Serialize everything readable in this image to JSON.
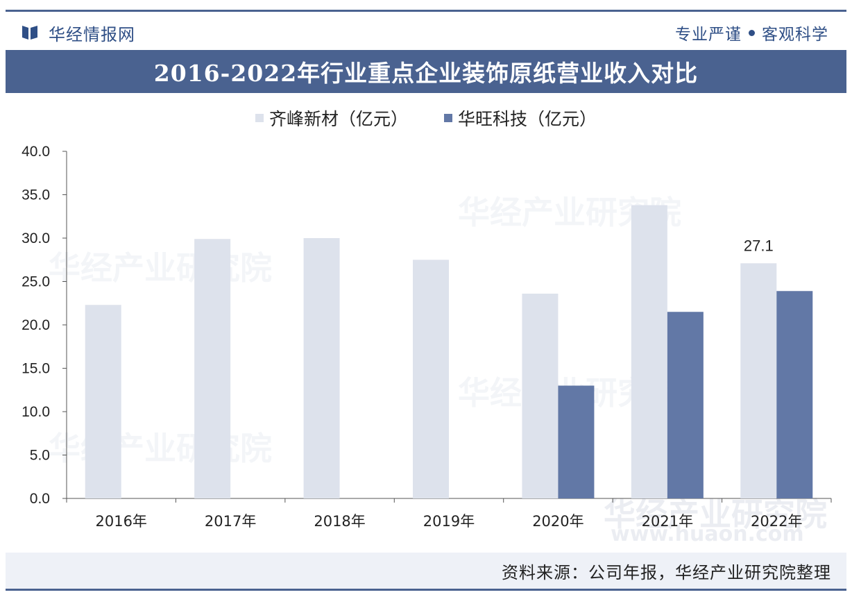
{
  "header": {
    "brand": "华经情报网",
    "slogan_left": "专业严谨",
    "slogan_right": "客观科学"
  },
  "title": "2016-2022年行业重点企业装饰原纸营业收入对比",
  "legend": [
    {
      "label": "齐峰新材（亿元）",
      "color": "#dde2ec"
    },
    {
      "label": "华旺科技（亿元）",
      "color": "#6278a6"
    }
  ],
  "footer": {
    "source": "资料来源：公司年报，华经产业研究院整理"
  },
  "watermarks": [
    "华经产业研究院",
    "www.huaon.com"
  ],
  "colors": {
    "accent": "#4a6290",
    "series1": "#dde2ec",
    "series2": "#6278a6"
  },
  "chart_data": {
    "type": "bar",
    "title": "2016-2022年行业重点企业装饰原纸营业收入对比",
    "categories": [
      "2016年",
      "2017年",
      "2018年",
      "2019年",
      "2020年",
      "2021年",
      "2022年"
    ],
    "series": [
      {
        "name": "齐峰新材（亿元）",
        "values": [
          22.3,
          29.9,
          30.0,
          27.5,
          23.6,
          33.8,
          27.1
        ]
      },
      {
        "name": "华旺科技（亿元）",
        "values": [
          null,
          null,
          null,
          null,
          13.0,
          21.5,
          23.9
        ]
      }
    ],
    "ylim": [
      0,
      40
    ],
    "yticks": [
      "0.0",
      "5.0",
      "10.0",
      "15.0",
      "20.0",
      "25.0",
      "30.0",
      "35.0",
      "40.0"
    ],
    "data_labels": [
      {
        "series": 0,
        "category": 6,
        "text": "27.1"
      }
    ],
    "grid": false,
    "legend_position": "top"
  }
}
